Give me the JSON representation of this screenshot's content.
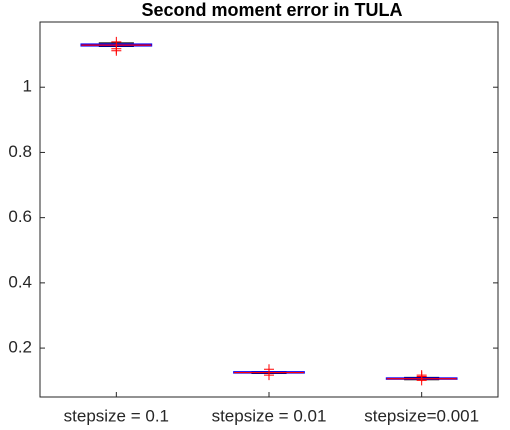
{
  "chart_data": {
    "type": "box",
    "title": "Second moment error in TULA",
    "categories": [
      "stepsize = 0.1",
      "stepsize = 0.01",
      "stepsize=0.001"
    ],
    "boxes": [
      {
        "low": 1.125,
        "q1": 1.127,
        "median": 1.129,
        "q3": 1.132,
        "high": 1.136,
        "outliers": [
          1.139,
          1.118,
          1.112
        ]
      },
      {
        "low": 0.122,
        "q1": 0.124,
        "median": 0.125,
        "q3": 0.127,
        "high": 0.128,
        "outliers": [
          0.135,
          0.117
        ]
      },
      {
        "low": 0.103,
        "q1": 0.105,
        "median": 0.106,
        "q3": 0.108,
        "high": 0.11,
        "outliers": [
          0.113,
          0.117,
          0.101
        ]
      }
    ],
    "box_color": "#0000ff",
    "median_color": "#ff0000",
    "outlier_color": "#ff0000",
    "ylim": [
      0.05,
      1.2
    ],
    "yticks": [
      0.2,
      0.4,
      0.6,
      0.8,
      1
    ],
    "grid": false
  }
}
